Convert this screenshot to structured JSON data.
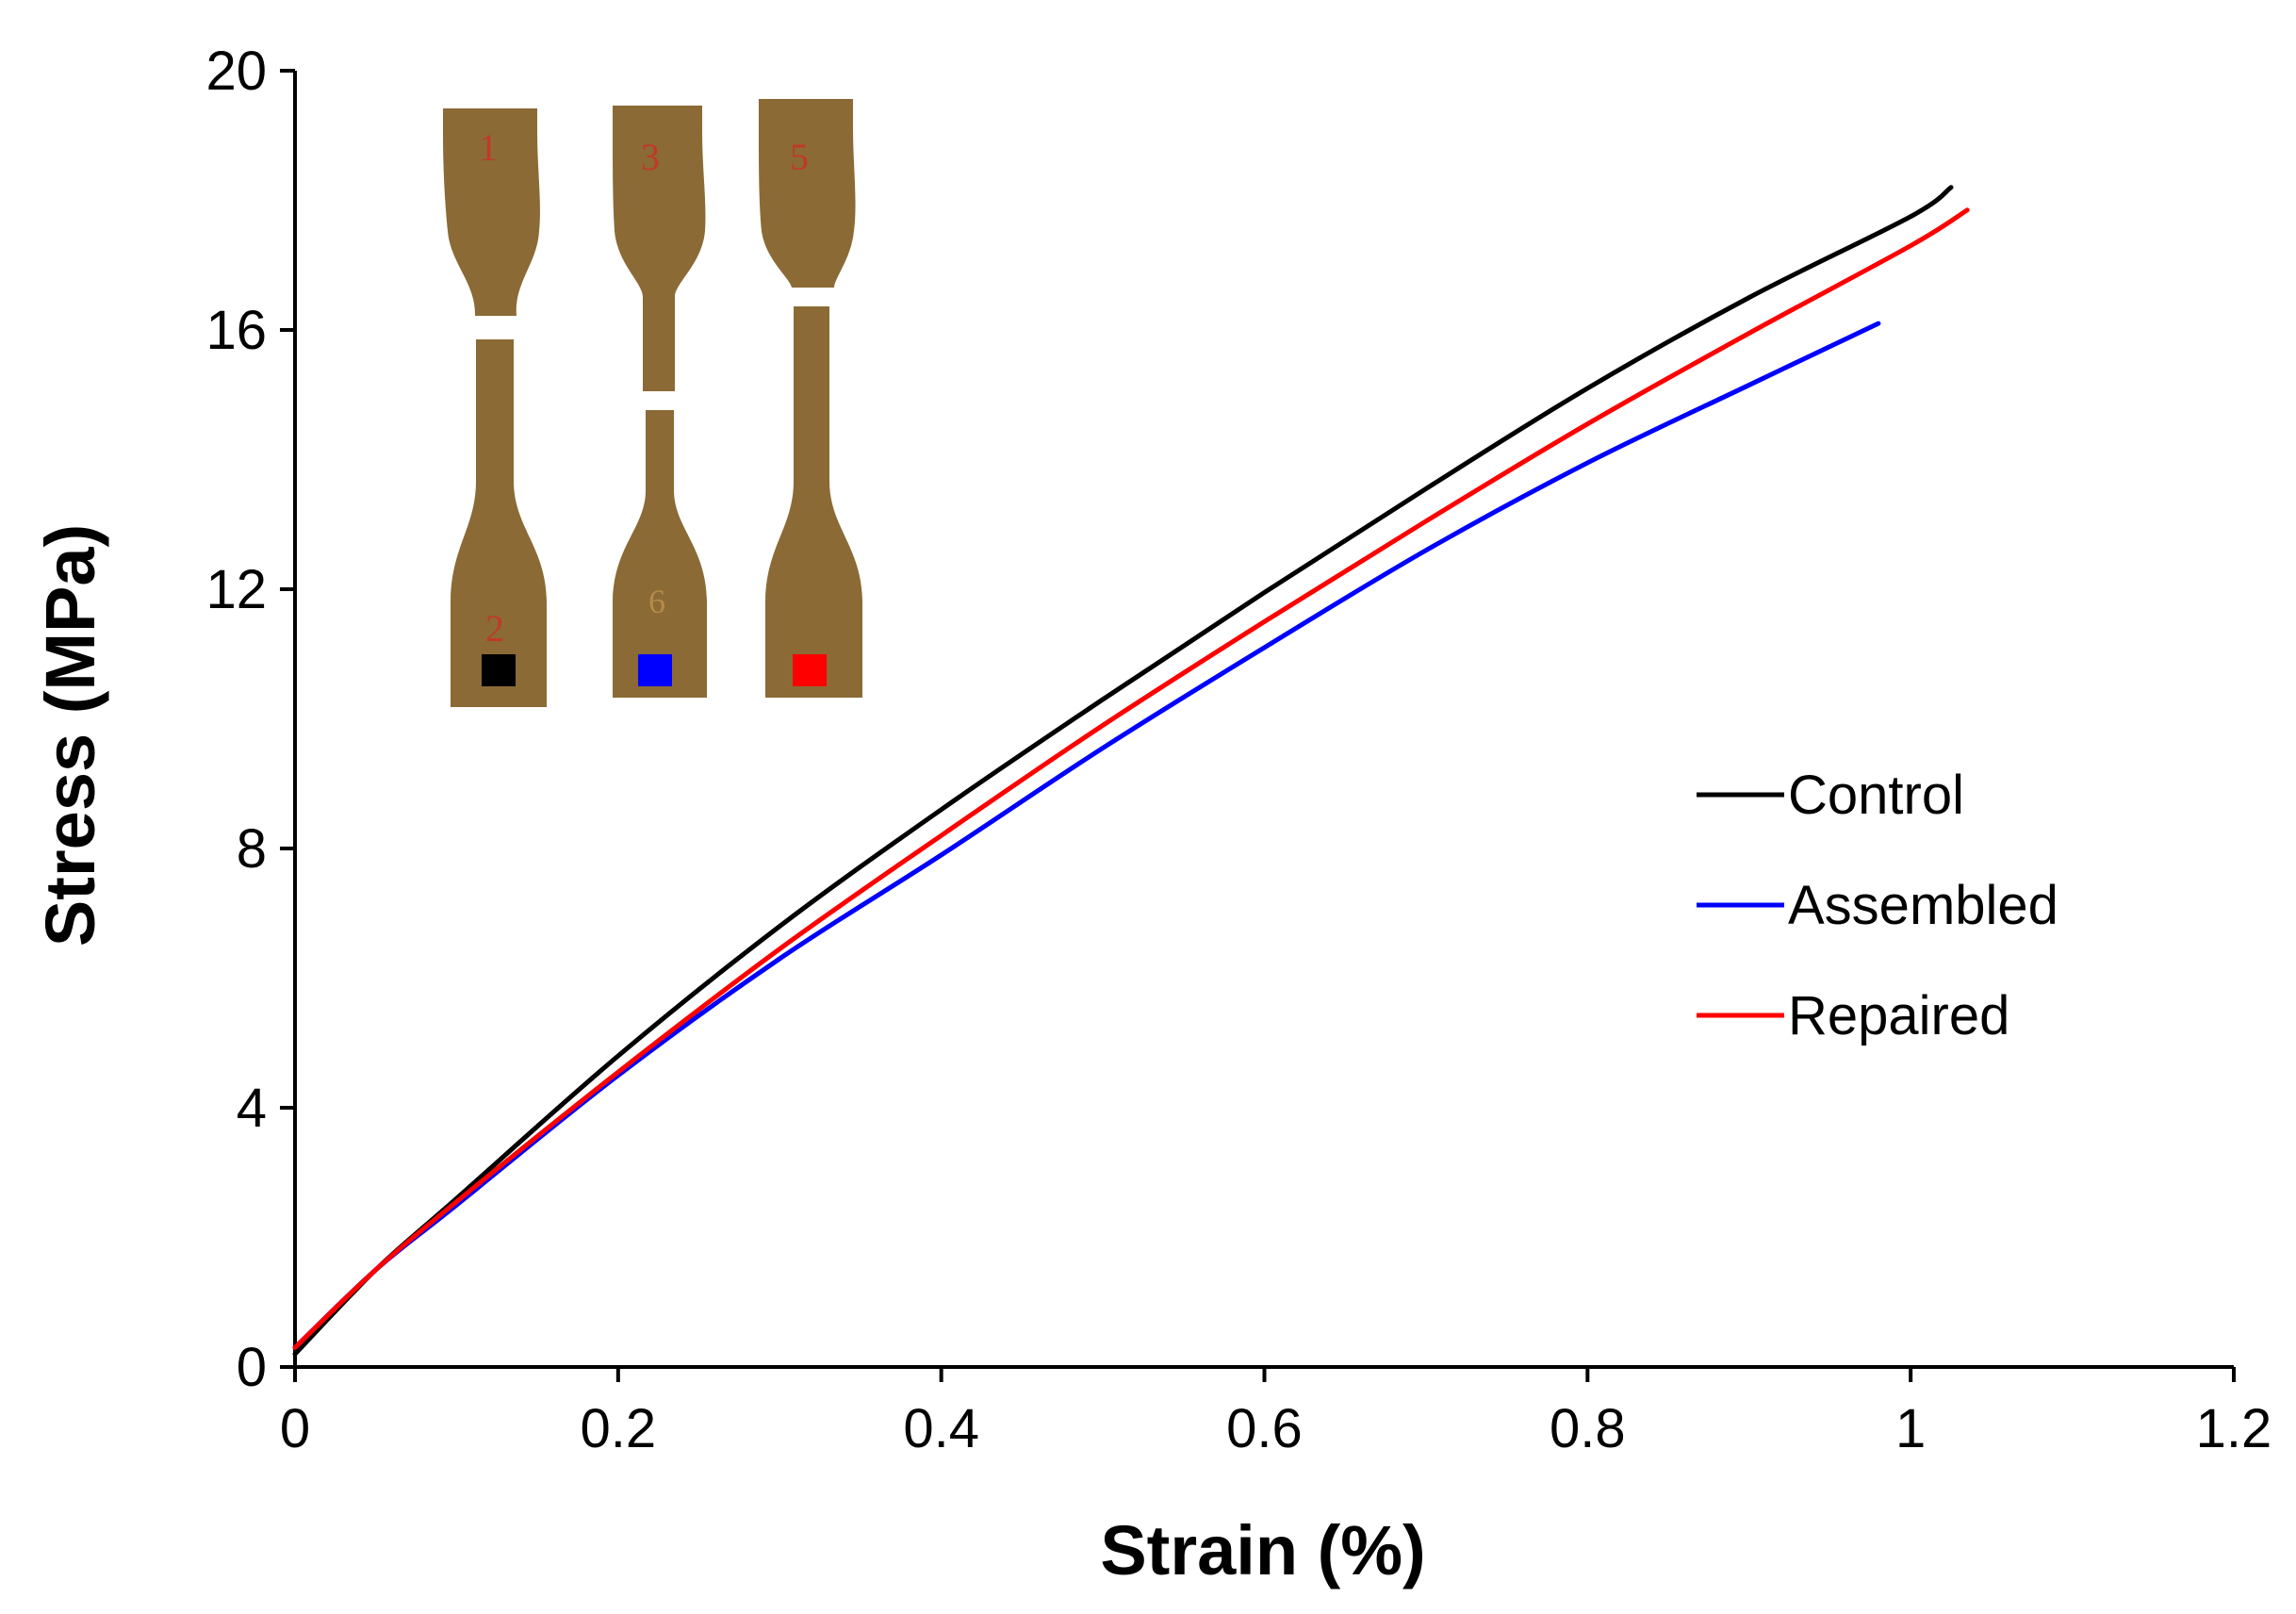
{
  "chart_data": {
    "type": "line",
    "title": "",
    "xlabel": "Strain (%)",
    "ylabel": "Stress (MPa)",
    "xlim": [
      0,
      1.2
    ],
    "ylim": [
      0,
      20
    ],
    "x_ticks": [
      "0",
      "0.2",
      "0.4",
      "0.6",
      "0.8",
      "1",
      "1.2"
    ],
    "y_ticks": [
      "0",
      "4",
      "8",
      "12",
      "16",
      "20"
    ],
    "grid": false,
    "legend_position": "right-middle",
    "series": [
      {
        "name": "Control",
        "color": "#000000",
        "x": [
          0,
          0.05,
          0.1,
          0.2,
          0.3,
          0.4,
          0.5,
          0.6,
          0.7,
          0.8,
          0.9,
          1.0,
          1.025
        ],
        "y": [
          0.2,
          1.5,
          2.6,
          4.8,
          6.8,
          8.6,
          10.3,
          11.95,
          13.55,
          15.1,
          16.5,
          17.75,
          18.2
        ]
      },
      {
        "name": "Assembled",
        "color": "#0000ff",
        "x": [
          0,
          0.05,
          0.1,
          0.2,
          0.3,
          0.4,
          0.5,
          0.6,
          0.7,
          0.8,
          0.9,
          0.98
        ],
        "y": [
          0.3,
          1.5,
          2.5,
          4.5,
          6.3,
          7.9,
          9.55,
          11.1,
          12.6,
          13.95,
          15.15,
          16.1
        ]
      },
      {
        "name": "Repaired",
        "color": "#ff0000",
        "x": [
          0,
          0.05,
          0.1,
          0.2,
          0.3,
          0.4,
          0.5,
          0.6,
          0.7,
          0.8,
          0.9,
          1.0,
          1.035
        ],
        "y": [
          0.3,
          1.5,
          2.55,
          4.55,
          6.45,
          8.2,
          9.9,
          11.5,
          13.05,
          14.55,
          15.95,
          17.3,
          17.85
        ]
      }
    ],
    "inset": {
      "description_icon": "specimen-photo-icon",
      "specimens": [
        {
          "top_label": "1",
          "bottom_label": "2",
          "marker_color": "#000000"
        },
        {
          "top_label": "3",
          "bottom_label": "6",
          "marker_color": "#0000ff"
        },
        {
          "top_label": "5",
          "bottom_label": "",
          "marker_color": "#ff0000"
        }
      ]
    }
  }
}
